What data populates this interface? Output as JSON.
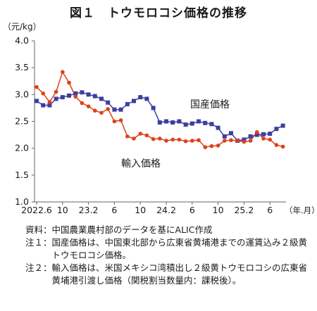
{
  "title": "図１　トウモロコシ価格の推移",
  "chart_data": {
    "type": "line",
    "y_unit": "（元/kg）",
    "x_unit": "（年.月）",
    "ylim": [
      1.0,
      4.0
    ],
    "yticks": [
      "4.0",
      "3.5",
      "3.0",
      "2.5",
      "2.0",
      "1.5",
      "1.0"
    ],
    "x_tick_labels": [
      "2022.6",
      "10",
      "23.2",
      "6",
      "10",
      "24.2",
      "6",
      "10",
      "25.2",
      "6"
    ],
    "grid": false,
    "series": [
      {
        "name": "国産価格",
        "color": "#3b3f9e",
        "marker": "square",
        "values": [
          2.88,
          2.8,
          2.8,
          2.92,
          2.95,
          2.98,
          3.02,
          3.04,
          3.0,
          2.97,
          2.92,
          2.85,
          2.72,
          2.72,
          2.82,
          2.88,
          2.95,
          2.92,
          2.75,
          2.48,
          2.5,
          2.48,
          2.5,
          2.44,
          2.46,
          2.5,
          2.47,
          2.45,
          2.38,
          2.22,
          2.28,
          2.14,
          2.16,
          2.22,
          2.25,
          2.26,
          2.27,
          2.36,
          2.42
        ]
      },
      {
        "name": "輸入価格",
        "color": "#e0401a",
        "marker": "circle",
        "values": [
          3.14,
          3.02,
          2.86,
          3.05,
          3.42,
          3.22,
          2.96,
          2.84,
          2.78,
          2.7,
          2.66,
          2.73,
          2.5,
          2.52,
          2.22,
          2.18,
          2.27,
          2.24,
          2.17,
          2.18,
          2.14,
          2.16,
          2.16,
          2.13,
          2.14,
          2.15,
          2.02,
          2.04,
          2.05,
          2.14,
          2.15,
          2.14,
          2.12,
          2.14,
          2.3,
          2.18,
          2.16,
          2.06,
          2.03
        ]
      }
    ]
  },
  "notes": [
    {
      "label": "資料：",
      "text": "中国農業農村部のデータを基にALIC作成"
    },
    {
      "label": "注１：",
      "text": "国産価格は、中国東北部から広東省黄埔港までの運賃込み２級黄トウモロコシ価格。"
    },
    {
      "label": "注２：",
      "text": "輸入価格は、米国メキシコ湾積出し２級黄トウモロコシの広東省黄埔港引渡し価格（関税割当数量内：課税後）。"
    }
  ]
}
